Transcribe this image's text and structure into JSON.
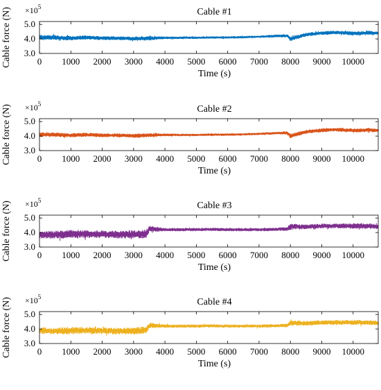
{
  "chart_data": [
    {
      "type": "line",
      "title": "Cable #1",
      "xlabel": "Time (s)",
      "ylabel": "Cable force (N)",
      "multiplier_base": "×10",
      "multiplier_exp": "5",
      "xlim": [
        0,
        10800
      ],
      "ylim": [
        3.0,
        5.2
      ],
      "xticks": [
        0,
        1000,
        2000,
        3000,
        4000,
        5000,
        6000,
        7000,
        8000,
        9000,
        10000
      ],
      "yticks": [
        3.0,
        4.0,
        5.0
      ],
      "xticklabels": [
        "0",
        "1000",
        "2000",
        "3000",
        "4000",
        "5000",
        "6000",
        "7000",
        "8000",
        "9000",
        "10000"
      ],
      "yticklabels": [
        "3.0",
        "4.0",
        "5.0"
      ],
      "color": "#0072BD",
      "series": [
        {
          "x": [
            0,
            500,
            1000,
            1500,
            2000,
            2500,
            3000,
            3500,
            4000,
            4500,
            5000,
            5500,
            6000,
            6500,
            7000,
            7500,
            7900,
            8000,
            8500,
            9000,
            9500,
            10000,
            10500,
            10800
          ],
          "y": [
            4.1,
            4.1,
            4.05,
            4.1,
            4.05,
            4.05,
            4.02,
            4.05,
            4.08,
            4.08,
            4.08,
            4.1,
            4.1,
            4.12,
            4.15,
            4.2,
            4.22,
            4.0,
            4.3,
            4.4,
            4.45,
            4.38,
            4.42,
            4.4
          ],
          "band": [
            0.16,
            0.15,
            0.14,
            0.12,
            0.12,
            0.12,
            0.13,
            0.14,
            0.08,
            0.07,
            0.07,
            0.07,
            0.07,
            0.07,
            0.07,
            0.08,
            0.1,
            0.15,
            0.12,
            0.12,
            0.12,
            0.14,
            0.12,
            0.1
          ]
        }
      ]
    },
    {
      "type": "line",
      "title": "Cable #2",
      "xlabel": "Time (s)",
      "ylabel": "Cable force (N)",
      "multiplier_base": "×10",
      "multiplier_exp": "5",
      "xlim": [
        0,
        10800
      ],
      "ylim": [
        3.0,
        5.2
      ],
      "xticks": [
        0,
        1000,
        2000,
        3000,
        4000,
        5000,
        6000,
        7000,
        8000,
        9000,
        10000
      ],
      "yticks": [
        3.0,
        4.0,
        5.0
      ],
      "xticklabels": [
        "0",
        "1000",
        "2000",
        "3000",
        "4000",
        "5000",
        "6000",
        "7000",
        "8000",
        "9000",
        "10000"
      ],
      "yticklabels": [
        "3.0",
        "4.0",
        "5.0"
      ],
      "color": "#D95319",
      "series": [
        {
          "x": [
            0,
            500,
            1000,
            1500,
            2000,
            2500,
            3000,
            3500,
            4000,
            4500,
            5000,
            5500,
            6000,
            6500,
            7000,
            7500,
            7900,
            8000,
            8500,
            9000,
            9500,
            10000,
            10500,
            10800
          ],
          "y": [
            4.1,
            4.1,
            4.05,
            4.1,
            4.05,
            4.05,
            4.02,
            4.05,
            4.08,
            4.08,
            4.08,
            4.1,
            4.1,
            4.12,
            4.15,
            4.2,
            4.22,
            4.0,
            4.3,
            4.4,
            4.45,
            4.38,
            4.42,
            4.4
          ],
          "band": [
            0.15,
            0.14,
            0.14,
            0.12,
            0.12,
            0.12,
            0.13,
            0.14,
            0.08,
            0.07,
            0.07,
            0.07,
            0.07,
            0.07,
            0.07,
            0.08,
            0.1,
            0.15,
            0.12,
            0.12,
            0.12,
            0.14,
            0.12,
            0.1
          ]
        }
      ]
    },
    {
      "type": "line",
      "title": "Cable #3",
      "xlabel": "Time (s)",
      "ylabel": "Cable force (N)",
      "multiplier_base": "×10",
      "multiplier_exp": "5",
      "xlim": [
        0,
        10800
      ],
      "ylim": [
        3.0,
        5.2
      ],
      "xticks": [
        0,
        1000,
        2000,
        3000,
        4000,
        5000,
        6000,
        7000,
        8000,
        9000,
        10000
      ],
      "yticks": [
        3.0,
        4.0,
        5.0
      ],
      "xticklabels": [
        "0",
        "1000",
        "2000",
        "3000",
        "4000",
        "5000",
        "6000",
        "7000",
        "8000",
        "9000",
        "10000"
      ],
      "yticklabels": [
        "3.0",
        "4.0",
        "5.0"
      ],
      "color": "#7E2F8E",
      "series": [
        {
          "x": [
            0,
            500,
            1000,
            1500,
            2000,
            2500,
            3000,
            3400,
            3500,
            4000,
            4500,
            5000,
            5500,
            6000,
            6500,
            7000,
            7500,
            7900,
            8000,
            8500,
            9000,
            9500,
            10000,
            10500,
            10800
          ],
          "y": [
            3.85,
            3.85,
            3.9,
            3.9,
            3.88,
            3.85,
            3.88,
            3.9,
            4.25,
            4.2,
            4.2,
            4.2,
            4.22,
            4.2,
            4.2,
            4.2,
            4.22,
            4.25,
            4.4,
            4.4,
            4.45,
            4.45,
            4.45,
            4.45,
            4.4
          ],
          "band": [
            0.25,
            0.25,
            0.3,
            0.25,
            0.25,
            0.25,
            0.28,
            0.28,
            0.2,
            0.1,
            0.1,
            0.1,
            0.1,
            0.1,
            0.1,
            0.1,
            0.1,
            0.12,
            0.2,
            0.15,
            0.15,
            0.15,
            0.18,
            0.18,
            0.15
          ]
        }
      ]
    },
    {
      "type": "line",
      "title": "Cable #4",
      "xlabel": "Time (s)",
      "ylabel": "Cable force (N)",
      "multiplier_base": "×10",
      "multiplier_exp": "5",
      "xlim": [
        0,
        10800
      ],
      "ylim": [
        3.0,
        5.2
      ],
      "xticks": [
        0,
        1000,
        2000,
        3000,
        4000,
        5000,
        6000,
        7000,
        8000,
        9000,
        10000
      ],
      "yticks": [
        3.0,
        4.0,
        5.0
      ],
      "xticklabels": [
        "0",
        "1000",
        "2000",
        "3000",
        "4000",
        "5000",
        "6000",
        "7000",
        "8000",
        "9000",
        "10000"
      ],
      "yticklabels": [
        "3.0",
        "4.0",
        "5.0"
      ],
      "color": "#EDB120",
      "series": [
        {
          "x": [
            0,
            500,
            1000,
            1500,
            2000,
            2500,
            3000,
            3400,
            3500,
            4000,
            4500,
            5000,
            5500,
            6000,
            6500,
            7000,
            7500,
            7900,
            8000,
            8500,
            9000,
            9500,
            10000,
            10500,
            10800
          ],
          "y": [
            3.9,
            3.85,
            3.9,
            3.9,
            3.88,
            3.85,
            3.88,
            3.9,
            4.25,
            4.2,
            4.2,
            4.2,
            4.22,
            4.2,
            4.2,
            4.2,
            4.22,
            4.25,
            4.4,
            4.4,
            4.45,
            4.45,
            4.45,
            4.45,
            4.4
          ],
          "band": [
            0.22,
            0.22,
            0.25,
            0.22,
            0.22,
            0.22,
            0.25,
            0.25,
            0.18,
            0.1,
            0.1,
            0.1,
            0.1,
            0.1,
            0.1,
            0.1,
            0.1,
            0.12,
            0.18,
            0.15,
            0.15,
            0.15,
            0.16,
            0.16,
            0.14
          ]
        }
      ]
    }
  ]
}
